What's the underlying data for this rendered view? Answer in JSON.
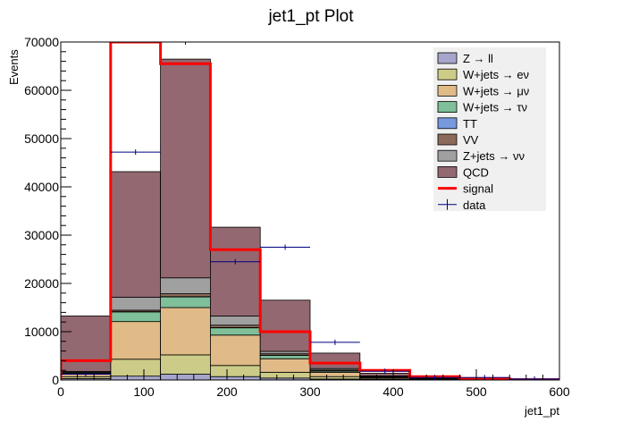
{
  "chart_data": {
    "type": "bar",
    "title": "jet1_pt Plot",
    "xlabel": "jet1_pt",
    "ylabel": "Events",
    "xlim": [
      0,
      600
    ],
    "ylim": [
      0,
      70000
    ],
    "x_ticks": [
      0,
      100,
      200,
      300,
      400,
      500,
      600
    ],
    "y_ticks": [
      0,
      10000,
      20000,
      30000,
      40000,
      50000,
      60000,
      70000
    ],
    "grid": false,
    "legend_position": "top-right",
    "bin_edges": [
      0,
      60,
      120,
      180,
      240,
      300,
      360,
      420,
      480,
      540,
      600
    ],
    "stacked_series": [
      {
        "name": "Z → ll",
        "color": "#a6a6cc",
        "values": [
          300,
          800,
          1200,
          700,
          400,
          200,
          80,
          30,
          10,
          5
        ]
      },
      {
        "name": "W+jets → eν",
        "color": "#cccc88",
        "values": [
          400,
          3500,
          4000,
          2300,
          1200,
          500,
          150,
          50,
          15,
          5
        ]
      },
      {
        "name": "W+jets → μν",
        "color": "#e0bb88",
        "values": [
          700,
          7800,
          9800,
          6300,
          2800,
          900,
          250,
          80,
          20,
          5
        ]
      },
      {
        "name": "W+jets → τν",
        "color": "#7fbf99",
        "values": [
          100,
          2000,
          2200,
          1500,
          700,
          250,
          80,
          25,
          8,
          3
        ]
      },
      {
        "name": "TT",
        "color": "#7799dd",
        "values": [
          20,
          50,
          60,
          50,
          30,
          20,
          10,
          5,
          2,
          1
        ]
      },
      {
        "name": "VV",
        "color": "#8c6a5a",
        "values": [
          50,
          300,
          600,
          500,
          300,
          200,
          120,
          60,
          20,
          5
        ]
      },
      {
        "name": "Z+jets → νν",
        "color": "#a0a0a0",
        "values": [
          200,
          2700,
          3300,
          1900,
          500,
          300,
          150,
          80,
          20,
          5
        ]
      },
      {
        "name": "QCD",
        "color": "#946870",
        "values": [
          11500,
          26000,
          45300,
          18400,
          10600,
          3200,
          560,
          170,
          45,
          10
        ]
      }
    ],
    "signal": {
      "name": "signal",
      "color": "#ff0000",
      "values": [
        4000,
        80000,
        65500,
        27000,
        10000,
        3500,
        2000,
        700,
        300,
        80
      ]
    },
    "data_points": {
      "name": "data",
      "color": "#000080",
      "x": [
        30,
        90,
        150,
        210,
        270,
        330,
        390,
        450,
        510,
        570
      ],
      "y": [
        1200,
        47200,
        70000,
        24500,
        27500,
        7800,
        1800,
        500,
        500,
        200
      ]
    }
  }
}
